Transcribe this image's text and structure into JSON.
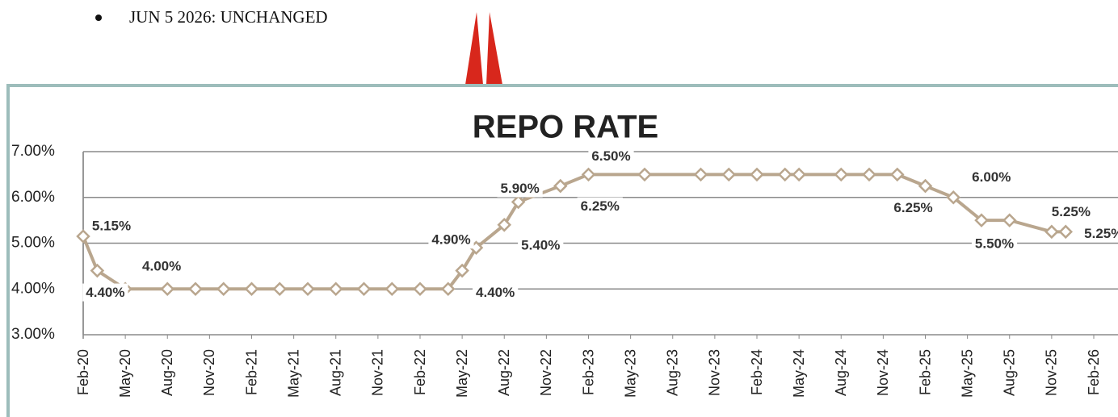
{
  "note": "JUN 5 2026: UNCHANGED",
  "chart_data": {
    "type": "line",
    "title": "REPO RATE",
    "x": [
      "2020-02",
      "2020-03",
      "2020-05",
      "2020-08",
      "2020-10",
      "2020-12",
      "2021-02",
      "2021-04",
      "2021-06",
      "2021-08",
      "2021-10",
      "2021-12",
      "2022-02",
      "2022-04",
      "2022-05",
      "2022-06",
      "2022-08",
      "2022-09",
      "2022-12",
      "2023-02",
      "2023-06",
      "2023-10",
      "2023-12",
      "2024-02",
      "2024-04",
      "2024-05",
      "2024-08",
      "2024-10",
      "2024-12",
      "2025-02",
      "2025-04",
      "2025-06",
      "2025-08",
      "2025-11",
      "2025-12"
    ],
    "series": [
      {
        "name": "Repo Rate",
        "color": "#b9a68e",
        "values": [
          5.15,
          4.4,
          4.0,
          4.0,
          4.0,
          4.0,
          4.0,
          4.0,
          4.0,
          4.0,
          4.0,
          4.0,
          4.0,
          4.0,
          4.4,
          4.9,
          5.4,
          5.9,
          6.25,
          6.5,
          6.5,
          6.5,
          6.5,
          6.5,
          6.5,
          6.5,
          6.5,
          6.5,
          6.5,
          6.25,
          6.0,
          5.5,
          5.5,
          5.25,
          5.25
        ],
        "value_labels": [
          "5.15%",
          "4.40%",
          "4.00%",
          null,
          null,
          null,
          null,
          null,
          null,
          null,
          null,
          null,
          null,
          null,
          "4.40%",
          "4.90%",
          "5.40%",
          "5.90%",
          "6.25%",
          "6.50%",
          null,
          null,
          null,
          null,
          null,
          null,
          null,
          null,
          null,
          "6.25%",
          "6.00%",
          "5.50%",
          null,
          "5.25%",
          "5.25%"
        ]
      }
    ],
    "xlim": [
      "2020-02",
      "2026-02"
    ],
    "xticks": [
      {
        "value": "2020-02",
        "label": "Feb-20"
      },
      {
        "value": "2020-05",
        "label": "May-20"
      },
      {
        "value": "2020-08",
        "label": "Aug-20"
      },
      {
        "value": "2020-11",
        "label": "Nov-20"
      },
      {
        "value": "2021-02",
        "label": "Feb-21"
      },
      {
        "value": "2021-05",
        "label": "May-21"
      },
      {
        "value": "2021-08",
        "label": "Aug-21"
      },
      {
        "value": "2021-11",
        "label": "Nov-21"
      },
      {
        "value": "2022-02",
        "label": "Feb-22"
      },
      {
        "value": "2022-05",
        "label": "May-22"
      },
      {
        "value": "2022-08",
        "label": "Aug-22"
      },
      {
        "value": "2022-11",
        "label": "Nov-22"
      },
      {
        "value": "2023-02",
        "label": "Feb-23"
      },
      {
        "value": "2023-05",
        "label": "May-23"
      },
      {
        "value": "2023-08",
        "label": "Aug-23"
      },
      {
        "value": "2023-11",
        "label": "Nov-23"
      },
      {
        "value": "2024-02",
        "label": "Feb-24"
      },
      {
        "value": "2024-05",
        "label": "May-24"
      },
      {
        "value": "2024-08",
        "label": "Aug-24"
      },
      {
        "value": "2024-11",
        "label": "Nov-24"
      },
      {
        "value": "2025-02",
        "label": "Feb-25"
      },
      {
        "value": "2025-05",
        "label": "May-25"
      },
      {
        "value": "2025-08",
        "label": "Aug-25"
      },
      {
        "value": "2025-11",
        "label": "Nov-25"
      },
      {
        "value": "2026-02",
        "label": "Feb-26"
      }
    ],
    "ylim": [
      3,
      7
    ],
    "yticks": [
      {
        "value": 3,
        "label": "3.00%"
      },
      {
        "value": 4,
        "label": "4.00%"
      },
      {
        "value": 5,
        "label": "5.00%"
      },
      {
        "value": 6,
        "label": "6.00%"
      },
      {
        "value": 7,
        "label": "7.00%"
      }
    ],
    "grid": true
  }
}
